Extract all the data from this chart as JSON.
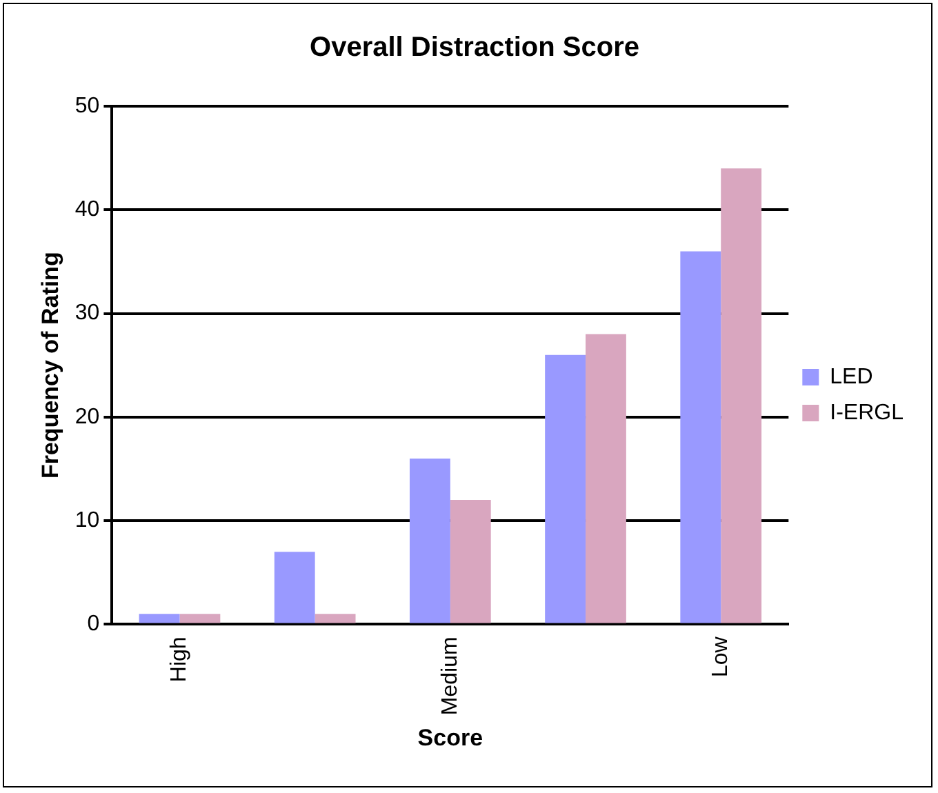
{
  "chart_data": {
    "type": "bar",
    "title": "Overall Distraction Score",
    "xlabel": "Score",
    "ylabel": "Frequency of Rating",
    "categories": [
      "High",
      null,
      "Medium",
      null,
      "Low"
    ],
    "series": [
      {
        "name": "LED",
        "color": "#9999ff",
        "values": [
          1,
          7,
          16,
          26,
          36
        ]
      },
      {
        "name": "I-ERGL",
        "color": "#d9a6bf",
        "values": [
          1,
          1,
          12,
          28,
          44
        ]
      }
    ],
    "ylim": [
      0,
      50
    ],
    "yticks": [
      0,
      10,
      20,
      30,
      40,
      50
    ],
    "grid": "y",
    "legend": "right"
  }
}
